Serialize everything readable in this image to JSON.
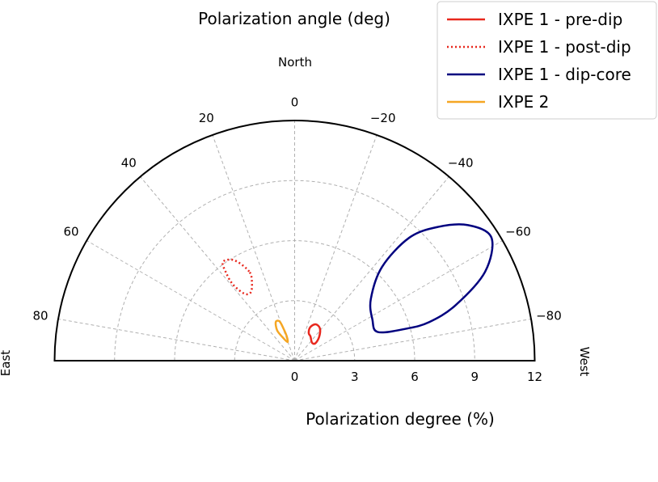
{
  "chart_data": {
    "type": "polar-half",
    "title": "Polarization angle (deg)",
    "xlabel": "Polarization degree (%)",
    "direction_labels": {
      "north": "North",
      "east": "East",
      "west": "West"
    },
    "radial_ticks": [
      0,
      3,
      6,
      9,
      12
    ],
    "radial_tick_labels": [
      "0",
      "3",
      "6",
      "9",
      "12"
    ],
    "rlim": [
      0,
      12
    ],
    "angle_ticks": [
      80,
      60,
      40,
      20,
      0,
      -20,
      -40,
      -60,
      -80
    ],
    "angle_tick_labels": [
      "80",
      "60",
      "40",
      "20",
      "0",
      "−20",
      "−40",
      "−60",
      "−80"
    ],
    "angle_range": [
      -90,
      90
    ],
    "angle_direction": "positive angles toward East (left), negative toward West (right)",
    "grid": true,
    "legend_position": "top-right",
    "series": [
      {
        "name": "IXPE 1 - pre-dip",
        "color": "#e8281e",
        "style": "solid",
        "contour_points": [
          [
            1.45,
            -33
          ],
          [
            1.25,
            -44
          ],
          [
            1.35,
            -50
          ],
          [
            1.7,
            -46
          ],
          [
            2.05,
            -38
          ],
          [
            2.1,
            -30
          ],
          [
            1.85,
            -25
          ],
          [
            1.55,
            -27
          ]
        ]
      },
      {
        "name": "IXPE 1 - post-dip",
        "color": "#e8281e",
        "style": "dotted",
        "contour_points": [
          [
            5.0,
            27
          ],
          [
            5.85,
            31
          ],
          [
            6.1,
            36
          ],
          [
            5.55,
            38
          ],
          [
            4.9,
            39
          ],
          [
            4.2,
            37
          ],
          [
            4.05,
            33
          ],
          [
            4.4,
            29
          ]
        ]
      },
      {
        "name": "IXPE 1 - dip-core",
        "color": "#00007f",
        "style": "solid",
        "contour_points": [
          [
            4.4,
            -71
          ],
          [
            5.8,
            -74
          ],
          [
            7.0,
            -74
          ],
          [
            8.5,
            -71
          ],
          [
            10.5,
            -65
          ],
          [
            11.6,
            -58
          ],
          [
            11.0,
            -52
          ],
          [
            9.8,
            -47
          ],
          [
            8.4,
            -43
          ],
          [
            6.4,
            -43
          ],
          [
            4.9,
            -51
          ],
          [
            4.4,
            -62
          ]
        ]
      },
      {
        "name": "IXPE 2",
        "color": "#f5a623",
        "style": "solid",
        "contour_points": [
          [
            1.25,
            18
          ],
          [
            1.65,
            19
          ],
          [
            2.1,
            21
          ],
          [
            2.15,
            26
          ],
          [
            1.75,
            30
          ],
          [
            1.3,
            27
          ],
          [
            1.0,
            21
          ]
        ]
      }
    ]
  }
}
